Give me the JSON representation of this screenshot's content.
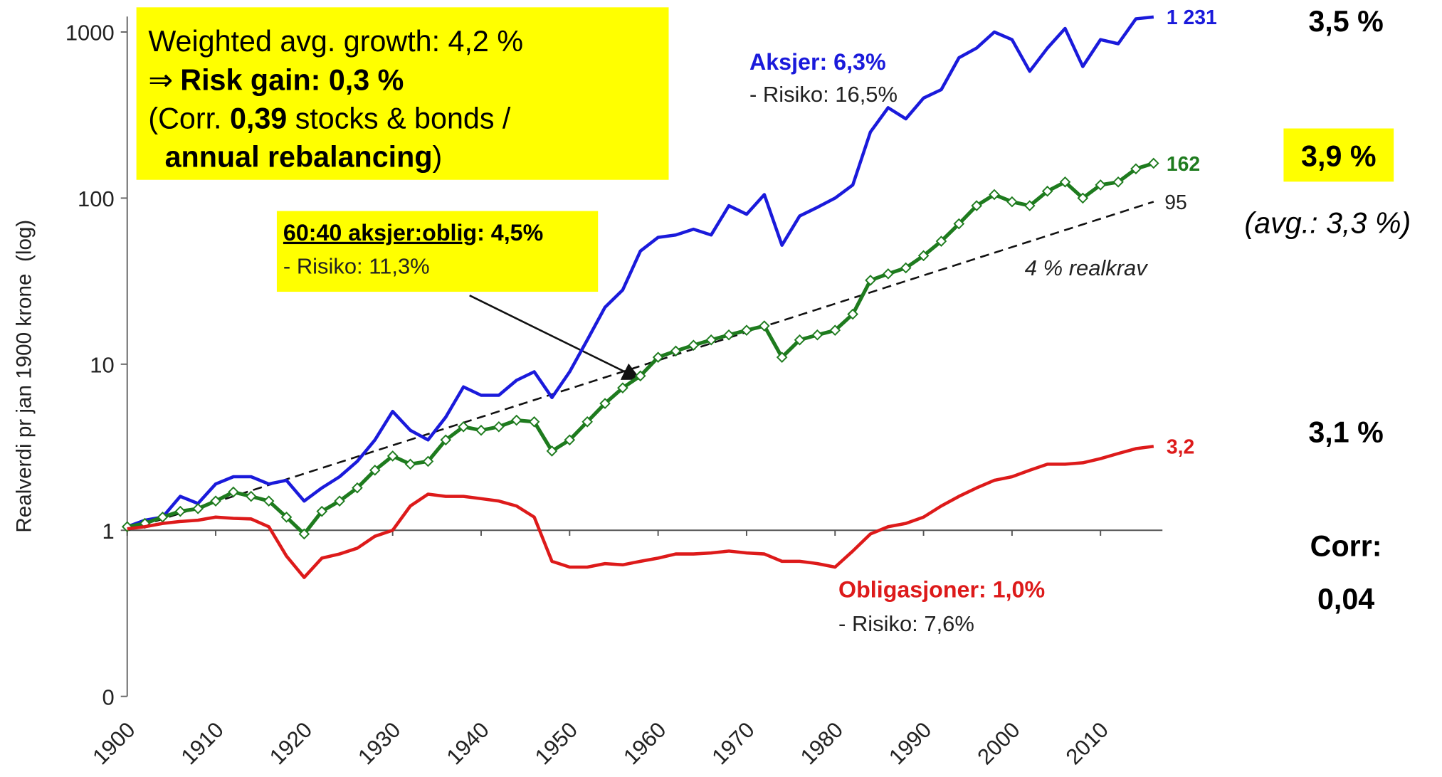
{
  "chart_data": {
    "type": "line",
    "y_axis_label": "Realverdi pr jan 1900 krone  (log)",
    "log_scale": true,
    "xlim": [
      1900,
      2017
    ],
    "ylim": [
      0.1,
      1500
    ],
    "xticks": [
      1900,
      1910,
      1920,
      1930,
      1940,
      1950,
      1960,
      1970,
      1980,
      1990,
      2000,
      2010
    ],
    "yticks": [
      {
        "value": 0.1,
        "label": "0"
      },
      1,
      10,
      100,
      1000
    ],
    "xaxis_crosses": 1,
    "x": [
      1900,
      1902,
      1904,
      1906,
      1908,
      1910,
      1912,
      1914,
      1916,
      1918,
      1920,
      1922,
      1924,
      1926,
      1928,
      1930,
      1932,
      1934,
      1936,
      1938,
      1940,
      1942,
      1944,
      1946,
      1948,
      1950,
      1952,
      1954,
      1956,
      1958,
      1960,
      1962,
      1964,
      1966,
      1968,
      1970,
      1972,
      1974,
      1976,
      1978,
      1980,
      1982,
      1984,
      1986,
      1988,
      1990,
      1992,
      1994,
      1996,
      1998,
      2000,
      2002,
      2004,
      2006,
      2008,
      2010,
      2012,
      2014,
      2016
    ],
    "series": [
      {
        "name": "Aksjer: 6,3%",
        "risk": "- Risiko: 16,5%",
        "end_label": "1 231",
        "color": "#1a1adb",
        "markers": false,
        "values": [
          1.05,
          1.15,
          1.2,
          1.6,
          1.45,
          1.9,
          2.1,
          2.1,
          1.9,
          2.0,
          1.5,
          1.8,
          2.1,
          2.6,
          3.5,
          5.2,
          4.0,
          3.5,
          4.8,
          7.3,
          6.5,
          6.5,
          8.0,
          9.0,
          6.3,
          9.0,
          14,
          22,
          28,
          48,
          58,
          60,
          65,
          60,
          90,
          80,
          105,
          52,
          78,
          88,
          100,
          120,
          250,
          350,
          300,
          400,
          450,
          700,
          800,
          1000,
          900,
          580,
          800,
          1050,
          620,
          900,
          850,
          1200,
          1231
        ]
      },
      {
        "name": "60:40 aksjer:oblig",
        "name_suffix": ": 4,5%",
        "risk": "- Risiko: 11,3%",
        "end_label": "162",
        "color": "#1e7b1e",
        "markers": true,
        "values": [
          1.05,
          1.1,
          1.2,
          1.3,
          1.35,
          1.5,
          1.7,
          1.6,
          1.5,
          1.2,
          0.95,
          1.3,
          1.5,
          1.8,
          2.3,
          2.8,
          2.5,
          2.6,
          3.5,
          4.2,
          4.0,
          4.2,
          4.6,
          4.5,
          3.0,
          3.5,
          4.5,
          5.8,
          7.2,
          8.5,
          11,
          12,
          13,
          14,
          15,
          16,
          17,
          11,
          14,
          15,
          16,
          20,
          32,
          35,
          38,
          45,
          55,
          70,
          90,
          105,
          95,
          90,
          110,
          125,
          100,
          120,
          125,
          150,
          162
        ]
      },
      {
        "name": "Obligasjoner: 1,0%",
        "risk": "- Risiko: 7,6%",
        "end_label": "3,2",
        "color": "#dd1a1a",
        "markers": false,
        "values": [
          1.02,
          1.05,
          1.1,
          1.13,
          1.15,
          1.2,
          1.18,
          1.17,
          1.05,
          0.7,
          0.52,
          0.68,
          0.72,
          0.78,
          0.92,
          1.0,
          1.4,
          1.65,
          1.6,
          1.6,
          1.55,
          1.5,
          1.4,
          1.2,
          0.65,
          0.6,
          0.6,
          0.63,
          0.62,
          0.65,
          0.68,
          0.72,
          0.72,
          0.73,
          0.75,
          0.73,
          0.72,
          0.65,
          0.65,
          0.63,
          0.6,
          0.75,
          0.95,
          1.05,
          1.1,
          1.2,
          1.4,
          1.6,
          1.8,
          2.0,
          2.1,
          2.3,
          2.5,
          2.5,
          2.55,
          2.7,
          2.9,
          3.1,
          3.2
        ]
      }
    ],
    "reference": {
      "label": "4 % realkrav",
      "end_label": "95",
      "x": [
        1900,
        2016
      ],
      "values": [
        1,
        95
      ]
    },
    "box": {
      "line1": "Weighted avg. growth: 4,2 %",
      "arrow": "⇒",
      "gain": "Risk gain: 0,3 %",
      "corr_pre": "(Corr. ",
      "corr": "0,39",
      "corr_post": " stocks & bonds /",
      "rebal": "annual rebalancing",
      "close": ")"
    },
    "side": {
      "stocks": "3,5 %",
      "mix": "3,9 %",
      "avg": "(avg.: 3,3 %)",
      "bonds": "3,1 %",
      "corr_label": "Corr:",
      "corr": "0,04"
    }
  }
}
